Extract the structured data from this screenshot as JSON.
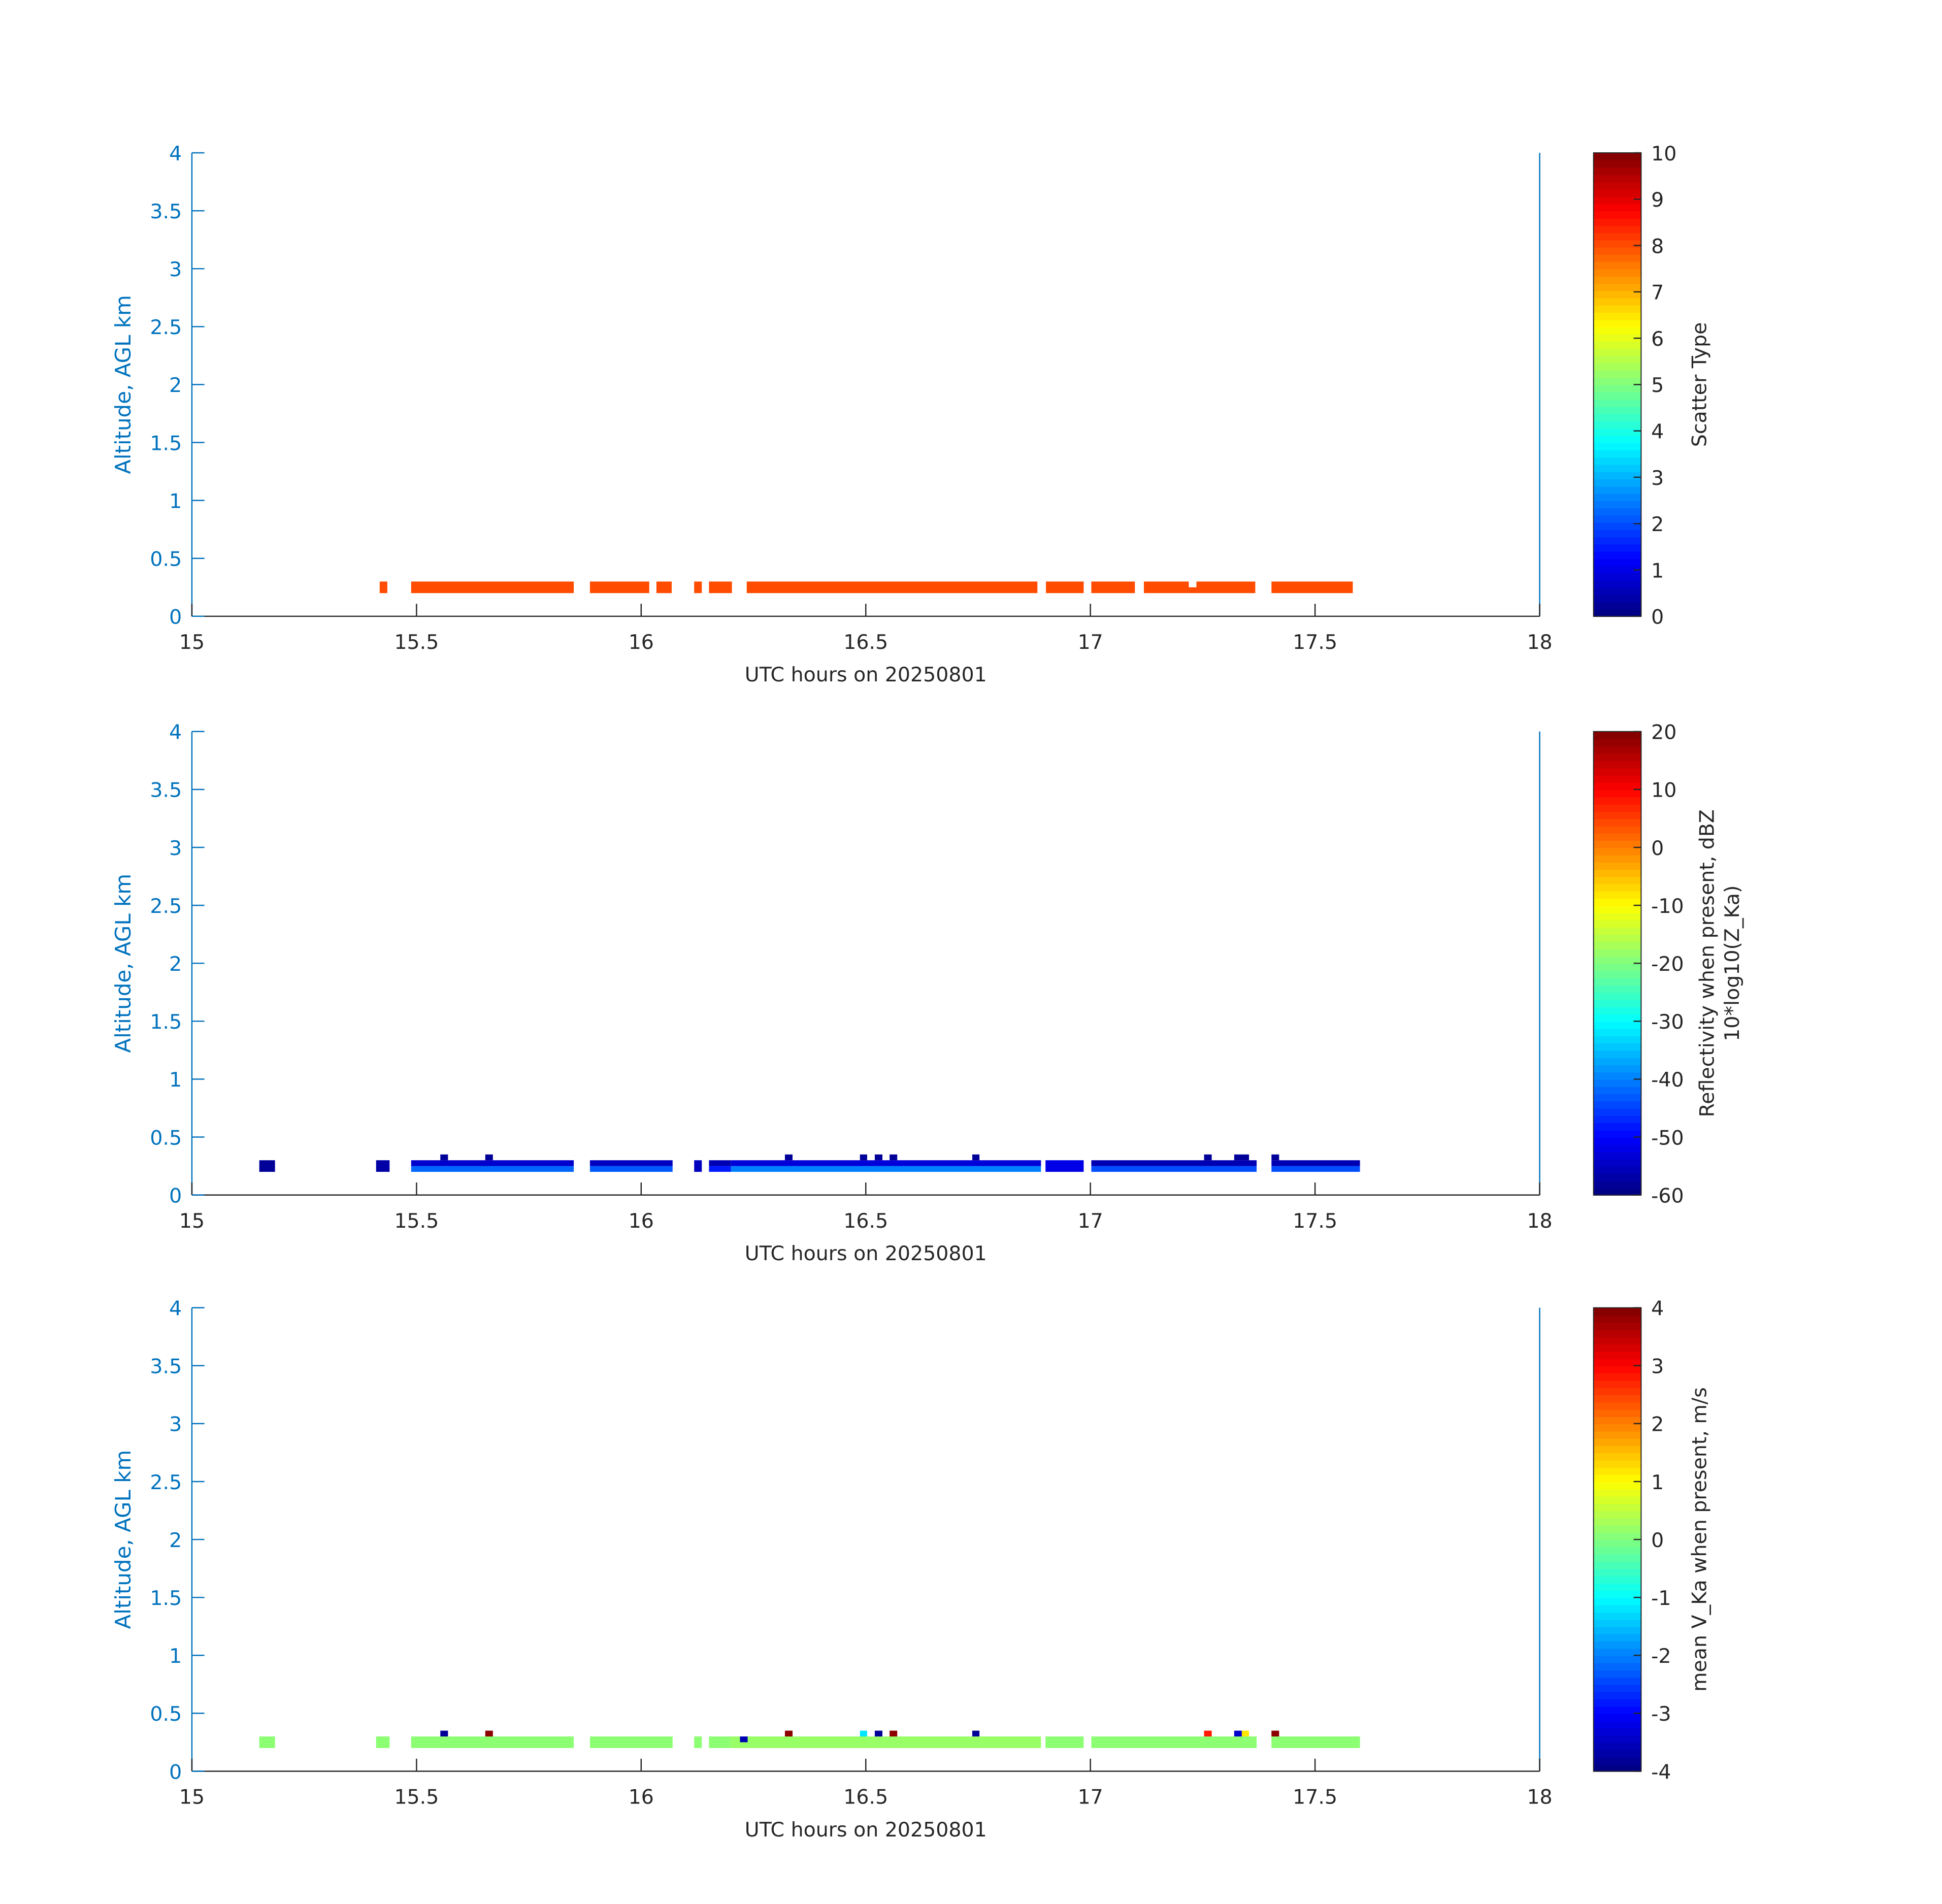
{
  "chart_data": [
    {
      "type": "heatmap",
      "xlabel": "UTC hours on 20250801",
      "ylabel": "Altitude, AGL km",
      "xlim": [
        15,
        18
      ],
      "ylim": [
        0,
        4
      ],
      "xticks": [
        "15",
        "15.5",
        "16",
        "16.5",
        "17",
        "17.5",
        "18"
      ],
      "yticks": [
        "0",
        "0.5",
        "1",
        "1.5",
        "2",
        "2.5",
        "3",
        "3.5",
        "4"
      ],
      "colorbar": {
        "label": "Scatter Type",
        "sub": "",
        "clim": [
          0,
          10
        ],
        "ticks": [
          "0",
          "1",
          "2",
          "3",
          "4",
          "5",
          "6",
          "7",
          "8",
          "9",
          "10"
        ]
      },
      "cells": [
        {
          "t0": 15.418,
          "t1": 15.435,
          "z0": 0.2,
          "z1": 0.3,
          "v": 8
        },
        {
          "t0": 15.488,
          "t1": 15.85,
          "z0": 0.2,
          "z1": 0.3,
          "v": 8
        },
        {
          "t0": 15.886,
          "t1": 16.018,
          "z0": 0.2,
          "z1": 0.3,
          "v": 8
        },
        {
          "t0": 16.034,
          "t1": 16.068,
          "z0": 0.2,
          "z1": 0.3,
          "v": 8
        },
        {
          "t0": 16.118,
          "t1": 16.135,
          "z0": 0.2,
          "z1": 0.3,
          "v": 8
        },
        {
          "t0": 16.151,
          "t1": 16.202,
          "z0": 0.2,
          "z1": 0.3,
          "v": 8
        },
        {
          "t0": 16.235,
          "t1": 16.882,
          "z0": 0.2,
          "z1": 0.3,
          "v": 8
        },
        {
          "t0": 16.901,
          "t1": 16.985,
          "z0": 0.2,
          "z1": 0.3,
          "v": 8
        },
        {
          "t0": 17.002,
          "t1": 17.099,
          "z0": 0.2,
          "z1": 0.3,
          "v": 8
        },
        {
          "t0": 17.119,
          "t1": 17.219,
          "z0": 0.2,
          "z1": 0.3,
          "v": 8
        },
        {
          "t0": 17.219,
          "t1": 17.236,
          "z0": 0.2,
          "z1": 0.25,
          "v": 8
        },
        {
          "t0": 17.236,
          "t1": 17.367,
          "z0": 0.2,
          "z1": 0.3,
          "v": 8
        },
        {
          "t0": 17.403,
          "t1": 17.584,
          "z0": 0.2,
          "z1": 0.3,
          "v": 8
        }
      ]
    },
    {
      "type": "heatmap",
      "xlabel": "UTC hours on 20250801",
      "ylabel": "Altitude, AGL km",
      "xlim": [
        15,
        18
      ],
      "ylim": [
        0,
        4
      ],
      "xticks": [
        "15",
        "15.5",
        "16",
        "16.5",
        "17",
        "17.5",
        "18"
      ],
      "yticks": [
        "0",
        "0.5",
        "1",
        "1.5",
        "2",
        "2.5",
        "3",
        "3.5",
        "4"
      ],
      "colorbar": {
        "label": "Reflectivity when present, dBZ",
        "sub": "10*log10(Z_Ka)",
        "clim": [
          -60,
          20
        ],
        "ticks": [
          "-60",
          "-50",
          "-40",
          "-30",
          "-20",
          "-10",
          "0",
          "10",
          "20"
        ]
      },
      "cells": [
        {
          "t0": 15.15,
          "t1": 15.185,
          "z0": 0.2,
          "z1": 0.3,
          "v": -58
        },
        {
          "t0": 15.41,
          "t1": 15.44,
          "z0": 0.2,
          "z1": 0.3,
          "v": -57
        },
        {
          "t0": 15.488,
          "t1": 15.85,
          "z0": 0.2,
          "z1": 0.25,
          "v": -42
        },
        {
          "t0": 15.488,
          "t1": 15.85,
          "z0": 0.25,
          "z1": 0.3,
          "v": -54
        },
        {
          "t0": 15.886,
          "t1": 16.07,
          "z0": 0.2,
          "z1": 0.25,
          "v": -43
        },
        {
          "t0": 15.886,
          "t1": 16.07,
          "z0": 0.25,
          "z1": 0.3,
          "v": -55
        },
        {
          "t0": 16.118,
          "t1": 16.135,
          "z0": 0.2,
          "z1": 0.3,
          "v": -55
        },
        {
          "t0": 16.151,
          "t1": 16.2,
          "z0": 0.2,
          "z1": 0.25,
          "v": -48
        },
        {
          "t0": 16.151,
          "t1": 16.2,
          "z0": 0.25,
          "z1": 0.3,
          "v": -56
        },
        {
          "t0": 16.2,
          "t1": 16.89,
          "z0": 0.2,
          "z1": 0.25,
          "v": -40
        },
        {
          "t0": 16.2,
          "t1": 16.89,
          "z0": 0.25,
          "z1": 0.3,
          "v": -53
        },
        {
          "t0": 16.9,
          "t1": 16.985,
          "z0": 0.2,
          "z1": 0.3,
          "v": -52
        },
        {
          "t0": 17.002,
          "t1": 17.37,
          "z0": 0.2,
          "z1": 0.25,
          "v": -44
        },
        {
          "t0": 17.002,
          "t1": 17.37,
          "z0": 0.25,
          "z1": 0.3,
          "v": -56
        },
        {
          "t0": 17.403,
          "t1": 17.6,
          "z0": 0.2,
          "z1": 0.25,
          "v": -44
        },
        {
          "t0": 17.403,
          "t1": 17.6,
          "z0": 0.25,
          "z1": 0.3,
          "v": -56
        },
        {
          "t0": 15.553,
          "t1": 15.57,
          "z0": 0.3,
          "z1": 0.35,
          "v": -58
        },
        {
          "t0": 15.653,
          "t1": 15.67,
          "z0": 0.3,
          "z1": 0.35,
          "v": -58
        },
        {
          "t0": 16.32,
          "t1": 16.337,
          "z0": 0.3,
          "z1": 0.35,
          "v": -58
        },
        {
          "t0": 16.487,
          "t1": 16.503,
          "z0": 0.3,
          "z1": 0.35,
          "v": -58
        },
        {
          "t0": 16.52,
          "t1": 16.537,
          "z0": 0.3,
          "z1": 0.35,
          "v": -58
        },
        {
          "t0": 16.553,
          "t1": 16.57,
          "z0": 0.3,
          "z1": 0.35,
          "v": -58
        },
        {
          "t0": 16.737,
          "t1": 16.753,
          "z0": 0.3,
          "z1": 0.35,
          "v": -58
        },
        {
          "t0": 17.253,
          "t1": 17.27,
          "z0": 0.3,
          "z1": 0.35,
          "v": -58
        },
        {
          "t0": 17.32,
          "t1": 17.353,
          "z0": 0.3,
          "z1": 0.35,
          "v": -58
        },
        {
          "t0": 17.403,
          "t1": 17.42,
          "z0": 0.3,
          "z1": 0.35,
          "v": -58
        }
      ]
    },
    {
      "type": "heatmap",
      "xlabel": "UTC hours on 20250801",
      "ylabel": "Altitude, AGL km",
      "xlim": [
        15,
        18
      ],
      "ylim": [
        0,
        4
      ],
      "xticks": [
        "15",
        "15.5",
        "16",
        "16.5",
        "17",
        "17.5",
        "18"
      ],
      "yticks": [
        "0",
        "0.5",
        "1",
        "1.5",
        "2",
        "2.5",
        "3",
        "3.5",
        "4"
      ],
      "colorbar": {
        "label": "mean V_Ka when present, m/s",
        "sub": "",
        "clim": [
          -4,
          4
        ],
        "ticks": [
          "-4",
          "-3",
          "-2",
          "-1",
          "0",
          "1",
          "2",
          "3",
          "4"
        ]
      },
      "cells": [
        {
          "t0": 15.15,
          "t1": 15.185,
          "z0": 0.2,
          "z1": 0.3,
          "v": 0.1
        },
        {
          "t0": 15.41,
          "t1": 15.44,
          "z0": 0.2,
          "z1": 0.3,
          "v": 0.1
        },
        {
          "t0": 15.488,
          "t1": 15.85,
          "z0": 0.2,
          "z1": 0.3,
          "v": 0.1
        },
        {
          "t0": 15.886,
          "t1": 16.07,
          "z0": 0.2,
          "z1": 0.3,
          "v": 0.1
        },
        {
          "t0": 16.118,
          "t1": 16.135,
          "z0": 0.2,
          "z1": 0.3,
          "v": 0.1
        },
        {
          "t0": 16.151,
          "t1": 16.2,
          "z0": 0.2,
          "z1": 0.3,
          "v": 0.1
        },
        {
          "t0": 16.2,
          "t1": 16.89,
          "z0": 0.2,
          "z1": 0.3,
          "v": 0.2
        },
        {
          "t0": 16.9,
          "t1": 16.985,
          "z0": 0.2,
          "z1": 0.3,
          "v": 0.1
        },
        {
          "t0": 17.002,
          "t1": 17.37,
          "z0": 0.2,
          "z1": 0.3,
          "v": 0.1
        },
        {
          "t0": 17.403,
          "t1": 17.6,
          "z0": 0.2,
          "z1": 0.3,
          "v": 0.1
        },
        {
          "t0": 16.22,
          "t1": 16.237,
          "z0": 0.25,
          "z1": 0.3,
          "v": -3.6
        },
        {
          "t0": 15.553,
          "t1": 15.57,
          "z0": 0.3,
          "z1": 0.35,
          "v": -3.8
        },
        {
          "t0": 15.653,
          "t1": 15.67,
          "z0": 0.3,
          "z1": 0.35,
          "v": 3.9
        },
        {
          "t0": 16.32,
          "t1": 16.337,
          "z0": 0.3,
          "z1": 0.35,
          "v": 3.9
        },
        {
          "t0": 16.487,
          "t1": 16.503,
          "z0": 0.3,
          "z1": 0.35,
          "v": -1.2
        },
        {
          "t0": 16.52,
          "t1": 16.537,
          "z0": 0.3,
          "z1": 0.35,
          "v": -3.8
        },
        {
          "t0": 16.553,
          "t1": 16.57,
          "z0": 0.3,
          "z1": 0.35,
          "v": 3.9
        },
        {
          "t0": 16.737,
          "t1": 16.753,
          "z0": 0.3,
          "z1": 0.35,
          "v": -3.8
        },
        {
          "t0": 17.253,
          "t1": 17.27,
          "z0": 0.3,
          "z1": 0.35,
          "v": 2.8
        },
        {
          "t0": 17.32,
          "t1": 17.337,
          "z0": 0.3,
          "z1": 0.35,
          "v": -3.4
        },
        {
          "t0": 17.337,
          "t1": 17.353,
          "z0": 0.3,
          "z1": 0.35,
          "v": 1.2
        },
        {
          "t0": 17.403,
          "t1": 17.42,
          "z0": 0.3,
          "z1": 0.35,
          "v": 3.9
        }
      ]
    }
  ]
}
